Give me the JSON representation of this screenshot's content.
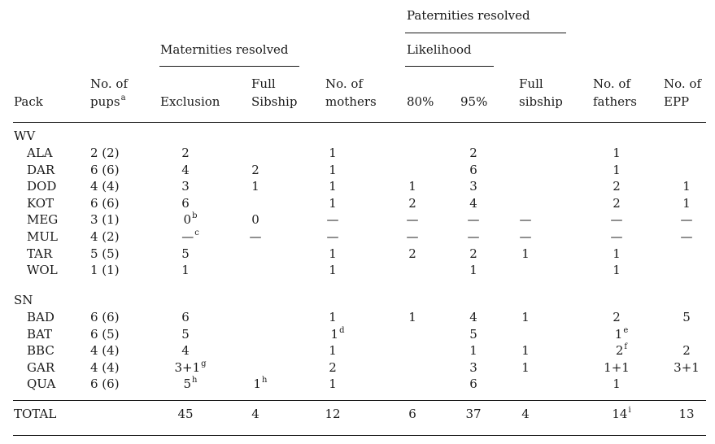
{
  "headers": {
    "paternities_resolved": "Paternities resolved",
    "likelihood": "Likelihood",
    "maternities_resolved": "Maternities resolved",
    "pack": "Pack",
    "no_of_pups": "No. of",
    "no_of_pups_2": "pups",
    "no_of_pups_sup": "a",
    "exclusion": "Exclusion",
    "full_sibship_1a": "Full",
    "full_sibship_1b": "Sibship",
    "no_of_mothers_a": "No. of",
    "no_of_mothers_b": "mothers",
    "pct80": "80%",
    "pct95": "95%",
    "full_sibship_2a": "Full",
    "full_sibship_2b": "sibship",
    "no_of_fathers_a": "No. of",
    "no_of_fathers_b": "fathers",
    "no_of_epp_a": "No. of",
    "no_of_epp_b": "EPP"
  },
  "groups": [
    {
      "label": "WV",
      "rows": [
        {
          "pack": "ALA",
          "pups": "2 (2)",
          "excl": "2",
          "excl_sup": "",
          "fs1": "",
          "fs1_sup": "",
          "mothers": "1",
          "mothers_sup": "",
          "l80": "",
          "l95": "2",
          "fs2": "",
          "fathers": "1",
          "fathers_sup": "",
          "epp": ""
        },
        {
          "pack": "DAR",
          "pups": "6 (6)",
          "excl": "4",
          "excl_sup": "",
          "fs1": "2",
          "fs1_sup": "",
          "mothers": "1",
          "mothers_sup": "",
          "l80": "",
          "l95": "6",
          "fs2": "",
          "fathers": "1",
          "fathers_sup": "",
          "epp": ""
        },
        {
          "pack": "DOD",
          "pups": "4 (4)",
          "excl": "3",
          "excl_sup": "",
          "fs1": "1",
          "fs1_sup": "",
          "mothers": "1",
          "mothers_sup": "",
          "l80": "1",
          "l95": "3",
          "fs2": "",
          "fathers": "2",
          "fathers_sup": "",
          "epp": "1"
        },
        {
          "pack": "KOT",
          "pups": "6 (6)",
          "excl": "6",
          "excl_sup": "",
          "fs1": "",
          "fs1_sup": "",
          "mothers": "1",
          "mothers_sup": "",
          "l80": "2",
          "l95": "4",
          "fs2": "",
          "fathers": "2",
          "fathers_sup": "",
          "epp": "1"
        },
        {
          "pack": "MEG",
          "pups": "3 (1)",
          "excl": "0",
          "excl_sup": "b",
          "fs1": "0",
          "fs1_sup": "",
          "mothers": "—",
          "mothers_sup": "",
          "l80": "—",
          "l95": "—",
          "fs2": "—",
          "fathers": "—",
          "fathers_sup": "",
          "epp": "—"
        },
        {
          "pack": "MUL",
          "pups": "4 (2)",
          "excl": "—",
          "excl_sup": "c",
          "fs1": "—",
          "fs1_sup": "",
          "mothers": "—",
          "mothers_sup": "",
          "l80": "—",
          "l95": "—",
          "fs2": "—",
          "fathers": "—",
          "fathers_sup": "",
          "epp": "—"
        },
        {
          "pack": "TAR",
          "pups": "5 (5)",
          "excl": "5",
          "excl_sup": "",
          "fs1": "",
          "fs1_sup": "",
          "mothers": "1",
          "mothers_sup": "",
          "l80": "2",
          "l95": "2",
          "fs2": "1",
          "fathers": "1",
          "fathers_sup": "",
          "epp": ""
        },
        {
          "pack": "WOL",
          "pups": "1 (1)",
          "excl": "1",
          "excl_sup": "",
          "fs1": "",
          "fs1_sup": "",
          "mothers": "1",
          "mothers_sup": "",
          "l80": "",
          "l95": "1",
          "fs2": "",
          "fathers": "1",
          "fathers_sup": "",
          "epp": ""
        }
      ]
    },
    {
      "label": "SN",
      "rows": [
        {
          "pack": "BAD",
          "pups": "6 (6)",
          "excl": "6",
          "excl_sup": "",
          "fs1": "",
          "fs1_sup": "",
          "mothers": "1",
          "mothers_sup": "",
          "l80": "1",
          "l95": "4",
          "fs2": "1",
          "fathers": "2",
          "fathers_sup": "",
          "epp": "5"
        },
        {
          "pack": "BAT",
          "pups": "6 (5)",
          "excl": "5",
          "excl_sup": "",
          "fs1": "",
          "fs1_sup": "",
          "mothers": "1",
          "mothers_sup": "d",
          "l80": "",
          "l95": "5",
          "fs2": "",
          "fathers": "1",
          "fathers_sup": "e",
          "epp": ""
        },
        {
          "pack": "BBC",
          "pups": "4 (4)",
          "excl": "4",
          "excl_sup": "",
          "fs1": "",
          "fs1_sup": "",
          "mothers": "1",
          "mothers_sup": "",
          "l80": "",
          "l95": "1",
          "fs2": "1",
          "fathers": "2",
          "fathers_sup": "f",
          "epp": "2"
        },
        {
          "pack": "GAR",
          "pups": "4 (4)",
          "excl": "3+1",
          "excl_sup": "g",
          "fs1": "",
          "fs1_sup": "",
          "mothers": "2",
          "mothers_sup": "",
          "l80": "",
          "l95": "3",
          "fs2": "1",
          "fathers": "1+1",
          "fathers_sup": "",
          "epp": "3+1"
        },
        {
          "pack": "QUA",
          "pups": "6 (6)",
          "excl": "5",
          "excl_sup": "h",
          "fs1": "1",
          "fs1_sup": "h",
          "mothers": "1",
          "mothers_sup": "",
          "l80": "",
          "l95": "6",
          "fs2": "",
          "fathers": "1",
          "fathers_sup": "",
          "epp": ""
        }
      ]
    }
  ],
  "total": {
    "pack": "TOTAL",
    "pups": "",
    "excl": "45",
    "excl_sup": "",
    "fs1": "4",
    "fs1_sup": "",
    "mothers": "12",
    "mothers_sup": "",
    "l80": "6",
    "l95": "37",
    "fs2": "4",
    "fathers": "14",
    "fathers_sup": "i",
    "epp": "13"
  }
}
